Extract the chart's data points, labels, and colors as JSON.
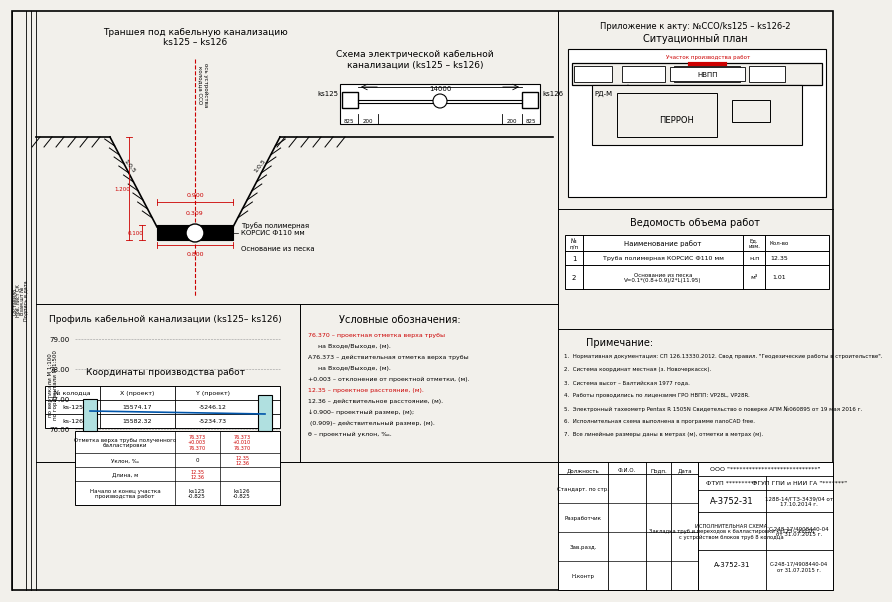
{
  "bg_color": "#f2f0eb",
  "title_top_right": "Приложение к акту: №ССО/ks125 – ks126-2",
  "section1_title": "Траншея под кабельную канализацию\nks125 – ks126",
  "section2_title": "Схема электрической кабельной\nканализации (ks125 – ks126)",
  "section3_title": "Ситуационный план",
  "section4_title": "Профиль кабельной канализации (ks125– ks126)",
  "section5_title": "Условные обозначения:",
  "section6_title": "Ведомость объема работ",
  "section7_title": "Примечание:",
  "section8_title": "Координаты производства работ",
  "trench_label1": "Труба полимерная\nКОРСИС Ф110 мм",
  "trench_label2": "Основание из песка",
  "trench_dim_w1": "0.900",
  "trench_dim_w2": "0.309",
  "trench_dim_h1": "1.200",
  "trench_dim_h2": "0.100",
  "trench_dim_w3": "0.800",
  "trench_slope1": "1:0,5",
  "trench_slope2": "1:0,5",
  "scheme_dim": "14000",
  "scheme_left": "ks125",
  "scheme_right": "ks126",
  "scheme_b1": "825",
  "scheme_b2": "200",
  "scheme_b3": "200",
  "scheme_b4": "825",
  "perron_label": "ПЕРРОН",
  "rdm_label": "РД-М",
  "nvpp_label": "НВПП",
  "work_area_label": "Участок производства работ",
  "profile_y_labels": [
    "79.00",
    "78.00",
    "77.00",
    "76.00"
  ],
  "profile_scale": "по вертикали М 1:100\nпо горизонтали М 1:500",
  "profile_top_label": "Отметка верха трубы полученного\nбалластировки",
  "profile_slope_label": "Уклон, ‰",
  "profile_len_label": "Длина, м",
  "profile_start_label": "Начало и конец участка\nпроизводства работ",
  "legend_items_red": [
    "76.370",
    "12.35"
  ],
  "legend_lines": [
    [
      "76.370",
      " – проектная отметка верха трубы",
      "     на Входе/Выходе, (м).",
      true
    ],
    [
      "А76.373",
      " – действительная отметка верха трубы",
      "     на Входе/Выходе, (м).",
      false
    ],
    [
      "+0.003",
      " – отклонение от проектной отметки, (м).",
      "",
      false
    ],
    [
      "12.35",
      " – проектное расстояние, (м).",
      "",
      true
    ],
    [
      "12.36",
      " – действительное расстояние, (м).",
      "",
      false
    ],
    [
      "↓0.900–",
      " проектный размер, (м);",
      " (0.909)– действительный размер, (м).",
      false
    ],
    [
      "θ",
      " – проектный уклон, ‰.",
      "",
      false
    ]
  ],
  "notes": [
    "Нормативная документация: СП 126.13330.2012. Свод правил. \"Геодезические работы в строительстве\".",
    "Система координат местная (з. Новочеркасск).",
    "Система высот – Балтийская 1977 года.",
    "Работы проводились по лицензиям ГРО НВПП: VP28L, VP28R.",
    "Электронный тахеометр Pentax R 1505N Свидетельство о поверке АПМ №060895 от 19 мая 2016 г.",
    "Исполнительная схема выполнена в программе nanoCAD free.",
    "Все линейные размеры даны в метрах (м), отметки в метрах (м)."
  ],
  "coord_rows": [
    [
      "ks-125",
      "15574.17",
      "-5246.12"
    ],
    [
      "ks-126",
      "15582.32",
      "-5234.73"
    ]
  ],
  "work_rows": [
    [
      "1",
      "Труба полимерная КОРСИС Ф110 мм",
      "н.п",
      "12.35"
    ],
    [
      "2",
      "Основание из песка\nV=0.1*(0.8+0.9)/2*L(11.95)",
      "м³",
      "1.01"
    ]
  ],
  "title_rows": [
    "Стандарт. по стр.",
    "Разработчик",
    "Зав.разд.",
    "Н.контр"
  ],
  "org_name": "ООО \"****************************\"",
  "ftup": "ФТУП **********",
  "fgup": "ФГУП ГПИ и НИИ ГА \"*******\"",
  "doc_num": "А-3752-31",
  "ref1": "1288-14/ГТЗ-3439/04 от\n17.10.2014 г.",
  "sheet_title": "ИСПОЛНИТЕЛЬНАЯ СХЕМА.\nЗакладка труб и переходов к балластировки ks125 – ks126\nс устройством блоков труб 8 колодца",
  "ref2": "С-248-17/4908440-04\nот 31.07.2015 г.",
  "red": "#cc0000",
  "blue": "#0055aa",
  "black": "#000000",
  "white": "#ffffff",
  "lgray": "#e0e0e0"
}
